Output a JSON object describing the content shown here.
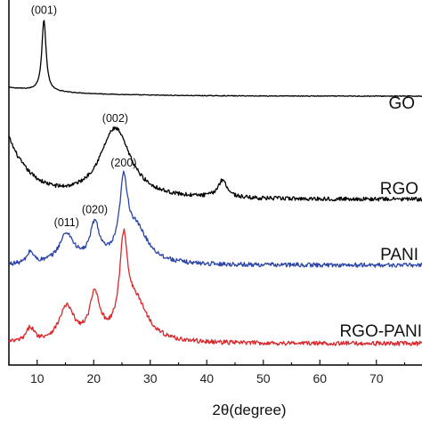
{
  "chart_data": {
    "type": "line",
    "title": "",
    "xlabel": "2θ(degree)",
    "ylabel": "",
    "xlim": [
      5,
      80
    ],
    "x_ticks": [
      10,
      20,
      30,
      40,
      50,
      60,
      70
    ],
    "grid": false,
    "legend": "none",
    "series": [
      {
        "name": "GO",
        "color": "#000000",
        "peaks": [
          {
            "label": "(001)",
            "x": 11.2,
            "height": 1.0,
            "width": 0.45
          }
        ],
        "base": {
          "start": 0.12,
          "end": 0.0,
          "decay": 12
        },
        "noise": 0.005
      },
      {
        "name": "RGO",
        "color": "#000000",
        "peaks": [
          {
            "label": "(002)",
            "x": 23.8,
            "height": 0.72,
            "width": 3.3
          },
          {
            "label": "",
            "x": 42.8,
            "height": 0.18,
            "width": 1.0
          }
        ],
        "base": {
          "start": 0.62,
          "end": 0.0,
          "decay": 4
        },
        "noise": 0.02
      },
      {
        "name": "PANI",
        "color": "#2b45a8",
        "peaks": [
          {
            "label": "",
            "x": 8.8,
            "height": 0.12,
            "width": 0.7
          },
          {
            "label": "(011)",
            "x": 15.2,
            "height": 0.3,
            "width": 1.6
          },
          {
            "label": "(020)",
            "x": 20.2,
            "height": 0.38,
            "width": 1.0
          },
          {
            "label": "(200)",
            "x": 25.3,
            "height": 0.72,
            "width": 0.85
          },
          {
            "label": "",
            "x": 27.5,
            "height": 0.35,
            "width": 2.6
          }
        ],
        "base": {
          "start": 0.0,
          "end": 0.0,
          "decay": 10
        },
        "noise": 0.022
      },
      {
        "name": "RGO-PANI",
        "color": "#d8282b",
        "peaks": [
          {
            "label": "",
            "x": 8.8,
            "height": 0.14,
            "width": 0.8
          },
          {
            "label": "",
            "x": 15.2,
            "height": 0.34,
            "width": 1.6
          },
          {
            "label": "",
            "x": 20.2,
            "height": 0.44,
            "width": 1.1
          },
          {
            "label": "",
            "x": 25.3,
            "height": 0.88,
            "width": 0.85
          },
          {
            "label": "",
            "x": 27.5,
            "height": 0.38,
            "width": 2.6
          }
        ],
        "base": {
          "start": 0.0,
          "end": 0.0,
          "decay": 10
        },
        "noise": 0.022
      }
    ]
  }
}
